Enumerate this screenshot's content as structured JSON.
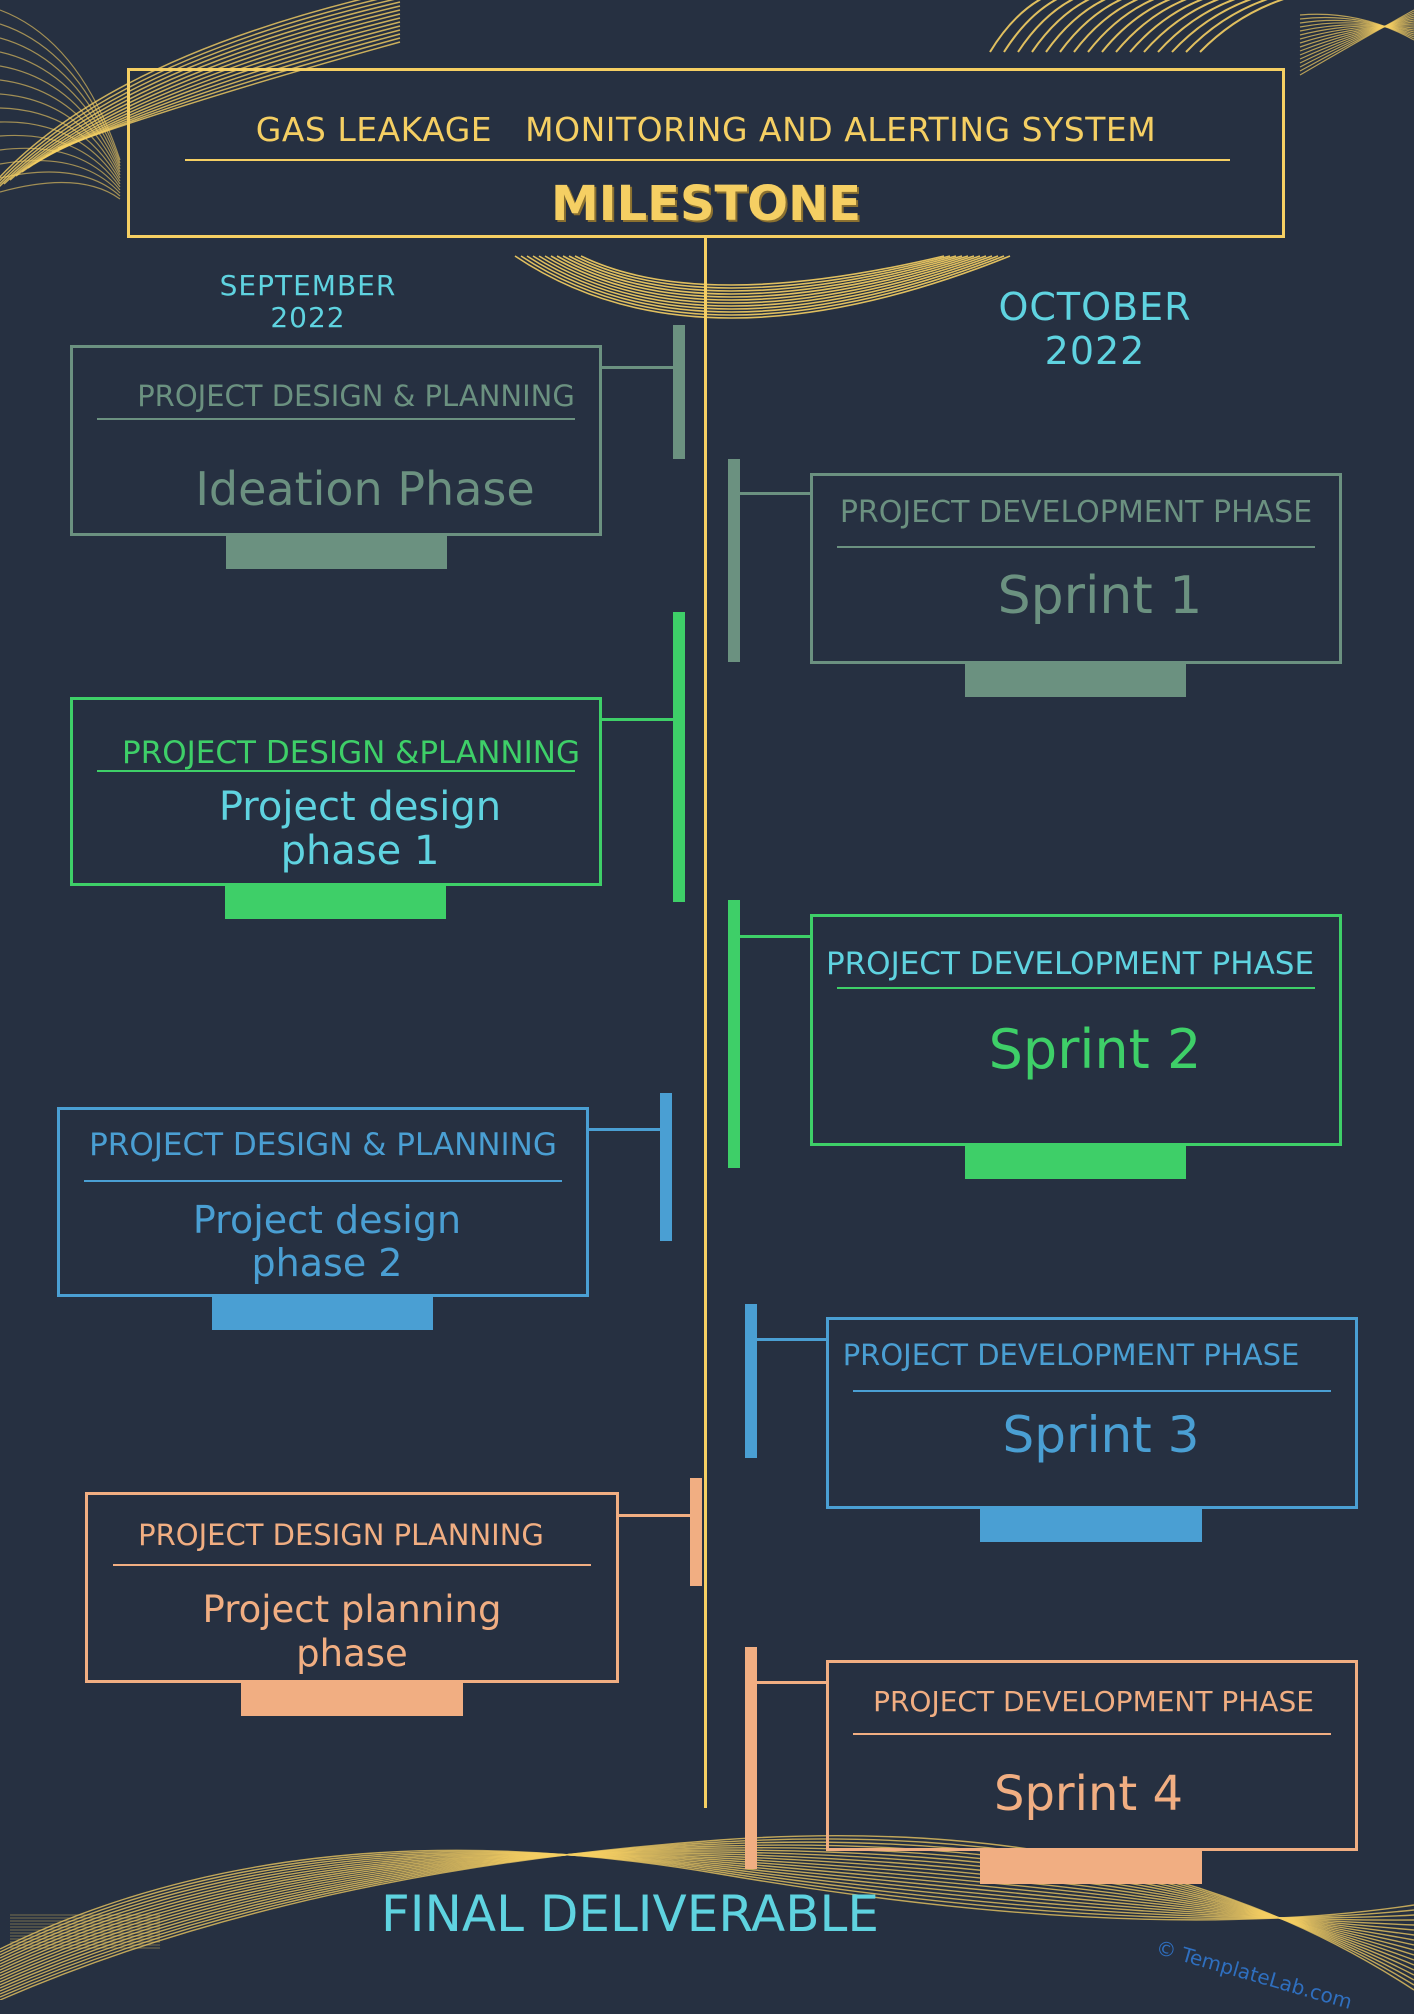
{
  "header": {
    "title": "GAS LEAKAGE   MONITORING AND ALERTING SYSTEM",
    "subtitle": "MILESTONE"
  },
  "months": {
    "september": "SEPTEMBER\n2022",
    "october": "OCTOBER\n2022"
  },
  "colors": {
    "gold": "#f5cf63",
    "sage": "#6b9180",
    "green": "#3ecf68",
    "blue": "#4a9fd3",
    "peach": "#f1ae82",
    "cyan": "#5fd3e0",
    "background": "#263041"
  },
  "left_milestones": [
    {
      "category": "PROJECT DESIGN & PLANNING",
      "title": "Ideation Phase"
    },
    {
      "category": "PROJECT DESIGN &PLANNING",
      "title": "Project design\nphase 1"
    },
    {
      "category": "PROJECT DESIGN & PLANNING",
      "title": "Project design\nphase 2"
    },
    {
      "category": "PROJECT DESIGN PLANNING",
      "title": "Project planning\nphase"
    }
  ],
  "right_milestones": [
    {
      "category": "PROJECT DEVELOPMENT PHASE",
      "title": "Sprint 1"
    },
    {
      "category": "PROJECT DEVELOPMENT PHASE",
      "title": "Sprint 2"
    },
    {
      "category": "PROJECT DEVELOPMENT PHASE",
      "title": "Sprint 3"
    },
    {
      "category": "PROJECT DEVELOPMENT PHASE",
      "title": "Sprint 4"
    }
  ],
  "footer": {
    "final": "FINAL DELIVERABLE",
    "watermark": "© TemplateLab.com"
  }
}
